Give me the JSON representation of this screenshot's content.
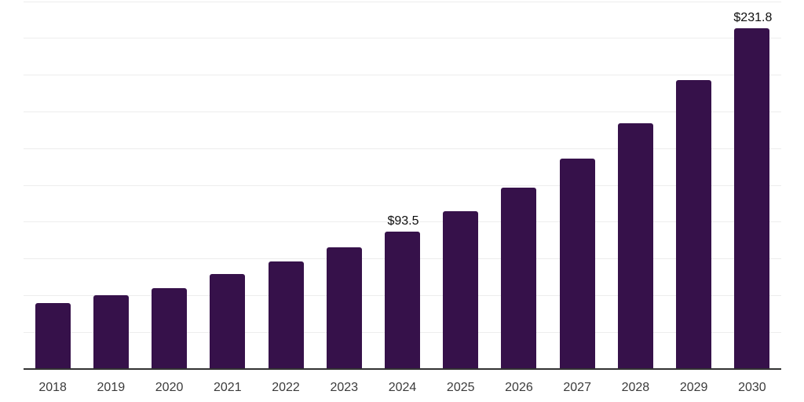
{
  "chart": {
    "background_color": "#ffffff",
    "bar_color": "#36114A",
    "grid_color": "#ededed",
    "axis_color": "#333333",
    "tick_label_color": "#3b3b3b",
    "value_label_color": "#0e0e0e"
  },
  "chart_data": {
    "type": "bar",
    "title": "",
    "xlabel": "",
    "ylabel": "",
    "categories": [
      "2018",
      "2019",
      "2020",
      "2021",
      "2022",
      "2023",
      "2024",
      "2025",
      "2026",
      "2027",
      "2028",
      "2029",
      "2030"
    ],
    "values": [
      44.9,
      50.2,
      55.0,
      64.7,
      73.2,
      82.8,
      93.5,
      107.4,
      123.4,
      143.2,
      167.2,
      196.4,
      231.8
    ],
    "value_labels": [
      {
        "category": "2024",
        "text": "$93.5"
      },
      {
        "category": "2030",
        "text": "$231.8"
      }
    ],
    "ylim": [
      0,
      250
    ],
    "grid": "horizontal",
    "grid_interval": 25,
    "y_axis_labels": "none",
    "legend": "none"
  }
}
